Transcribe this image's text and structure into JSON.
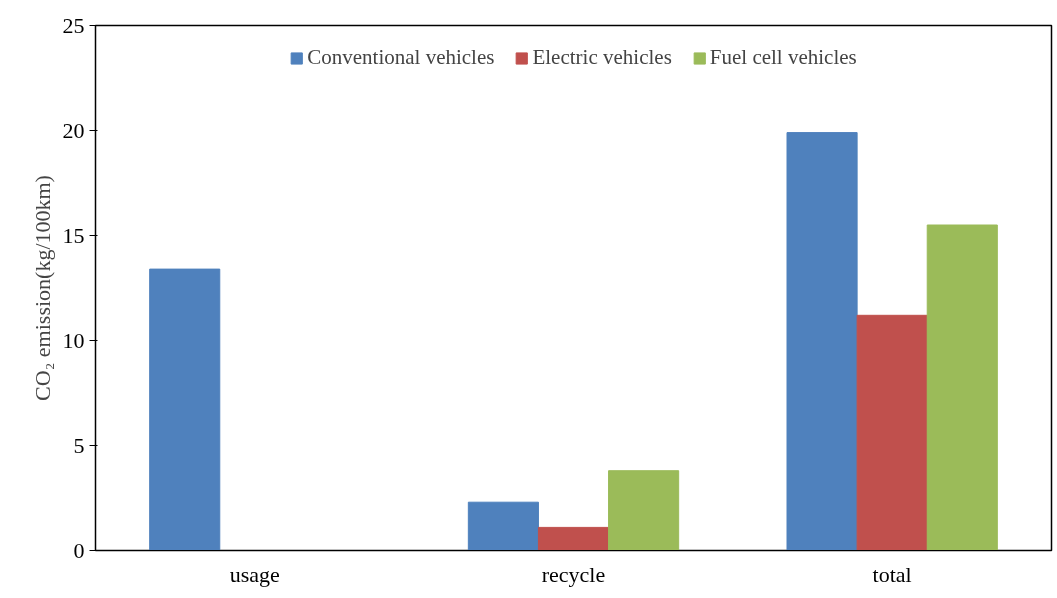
{
  "chart_data": {
    "type": "bar",
    "ylabel": "CO₂ emission(kg/100km)",
    "categories": [
      "usage",
      "recycle",
      "total"
    ],
    "series": [
      {
        "name": "Conventional vehicles",
        "color": "#4f81bd",
        "values": [
          13.4,
          2.3,
          19.9
        ]
      },
      {
        "name": "Electric vehicles",
        "color": "#c0504d",
        "values": [
          0,
          1.1,
          11.2
        ]
      },
      {
        "name": "Fuel cell vehicles",
        "color": "#9bbb59",
        "values": [
          0,
          3.8,
          15.5
        ]
      }
    ],
    "ylim": [
      0,
      25
    ],
    "yticks": [
      0,
      5,
      10,
      15,
      20,
      25
    ],
    "grid": false,
    "legend": "top"
  }
}
